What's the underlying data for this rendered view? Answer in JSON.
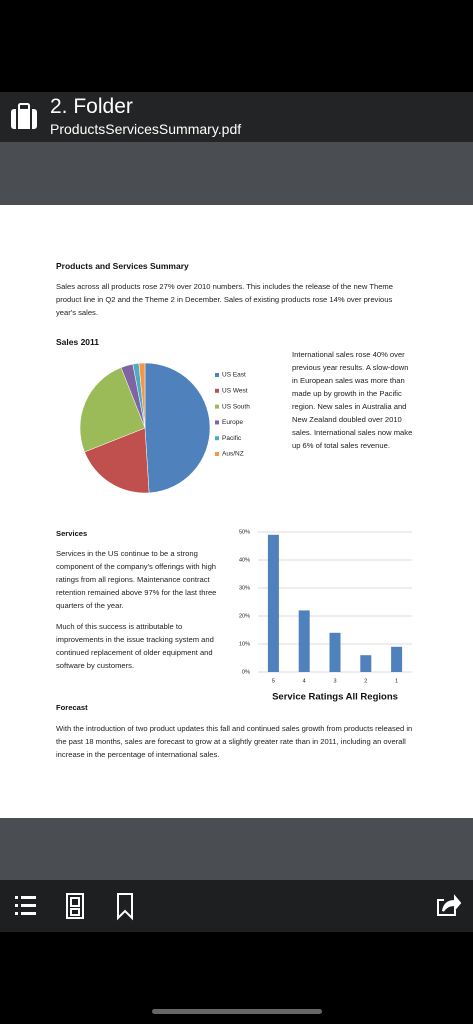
{
  "header": {
    "title": "2. Folder",
    "subtitle": "ProductsServicesSummary.pdf"
  },
  "document": {
    "title": "Products and Services Summary",
    "intro": "Sales across all products rose 27% over 2010 numbers.  This includes the release of the new Theme product line in Q2 and the Theme 2 in December.  Sales of existing products rose 14% over previous year's sales.",
    "sales_text": "International sales rose 40% over previous year results.  A slow-down in European sales was more than made up by growth in the Pacific region.  New sales in Australia and New Zealand doubled over 2010 sales.  International sales now make up 6% of total sales revenue.",
    "services_heading": "Services",
    "services_paragraphs": [
      "Services in the US continue to be a strong component of the company's offerings with high ratings from all regions.  Maintenance contract retention remained above 97% for the last three quarters of the year.",
      "Much of this success is attributable to improvements in the issue tracking system and continued replacement of older equipment and software by customers."
    ],
    "forecast_heading": "Forecast",
    "forecast_text": "With the introduction of two product updates this fall and continued sales growth from products released in the past 18 months, sales are forecast to grow at a slightly greater rate than in 2011, including an overall increase in the percentage of international sales."
  },
  "chart_data": [
    {
      "type": "pie",
      "title": "Sales 2011",
      "categories": [
        "US East",
        "US West",
        "US South",
        "Europe",
        "Pacific",
        "Aus/NZ"
      ],
      "values": [
        49,
        20,
        25,
        3,
        1.5,
        1.5
      ],
      "colors": [
        "#4f81bd",
        "#c0504d",
        "#9bbb59",
        "#8064a2",
        "#4bacc6",
        "#f79646"
      ]
    },
    {
      "type": "bar",
      "title": "Service Ratings All Regions",
      "categories": [
        "5",
        "4",
        "3",
        "2",
        "1"
      ],
      "values": [
        49,
        22,
        14,
        6,
        9
      ],
      "color": "#4f81bd",
      "ylim": [
        0,
        50
      ],
      "yticks": [
        {
          "value": 0,
          "label": "0%"
        },
        {
          "value": 10,
          "label": "10%"
        },
        {
          "value": 20,
          "label": "20%"
        },
        {
          "value": 30,
          "label": "30%"
        },
        {
          "value": 40,
          "label": "40%"
        },
        {
          "value": 50,
          "label": "50%"
        }
      ],
      "grid": true
    }
  ]
}
